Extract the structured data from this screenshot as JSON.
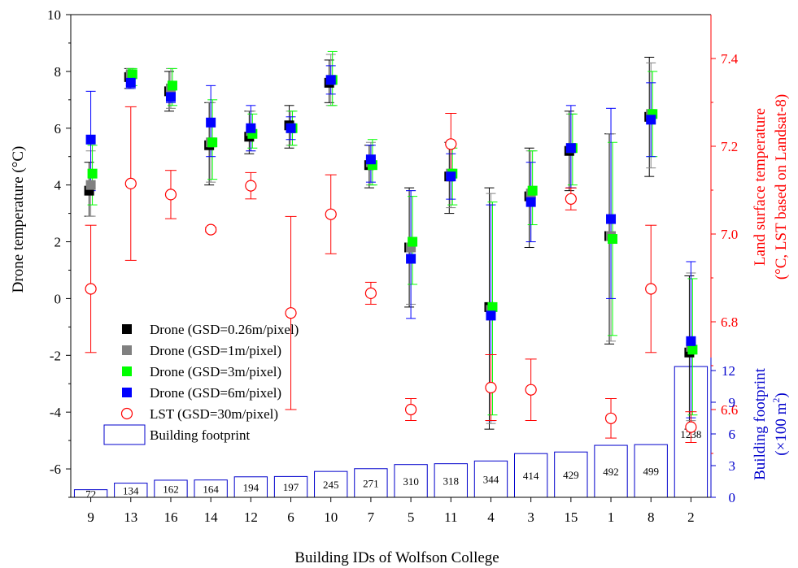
{
  "chart_data": {
    "type": "scatter",
    "xlabel": "Building IDs of Wolfson College",
    "ylabel_left": "Drone temperature (°C)",
    "ylabel_right_line1": "Land surface temperature",
    "ylabel_right_line2": "(°C, LST based on Landsat-8)",
    "ylabel_footprint_line1": "Building footprint",
    "ylabel_footprint_line2_pre": "(×100 m",
    "ylabel_footprint_sup": "2",
    "ylabel_footprint_line2_post": ")",
    "ylim_left": [
      -7,
      10
    ],
    "yticks_left": [
      -6,
      -4,
      -2,
      0,
      2,
      4,
      6,
      8,
      10
    ],
    "ytick_labels_left": [
      "-6",
      "-4",
      "-2",
      "0",
      "2",
      "4",
      "6",
      "8",
      "10"
    ],
    "ylim_right": [
      6.4,
      7.5
    ],
    "yticks_right": [
      6.6,
      6.8,
      7.0,
      7.2,
      7.4
    ],
    "ytick_labels_right": [
      "6.6",
      "6.8",
      "7.0",
      "7.2",
      "7.4"
    ],
    "footprint_ticks": [
      0,
      3,
      6,
      9,
      12
    ],
    "footprint_tick_labels": [
      "0",
      "3",
      "6",
      "9",
      "12"
    ],
    "categories": [
      "9",
      "13",
      "16",
      "14",
      "12",
      "6",
      "10",
      "7",
      "5",
      "11",
      "4",
      "3",
      "15",
      "1",
      "8",
      "2"
    ],
    "series": [
      {
        "name": "Drone (GSD=0.26m/pixel)",
        "color": "#000000",
        "marker": "square",
        "values": [
          3.8,
          7.8,
          7.3,
          5.4,
          5.7,
          6.1,
          7.6,
          4.7,
          1.8,
          4.3,
          -0.3,
          3.6,
          5.2,
          2.2,
          6.4,
          -1.9
        ],
        "err_low": [
          2.9,
          7.4,
          6.6,
          4.0,
          5.1,
          5.3,
          6.9,
          3.9,
          -0.3,
          3.0,
          -4.6,
          1.8,
          3.8,
          -1.6,
          4.3,
          -4.6
        ],
        "err_high": [
          4.8,
          8.1,
          8.0,
          6.9,
          6.6,
          6.8,
          8.4,
          5.4,
          3.9,
          5.5,
          3.9,
          5.3,
          6.6,
          5.8,
          8.5,
          0.8
        ]
      },
      {
        "name": "Drone (GSD=1m/pixel)",
        "color": "#808080",
        "marker": "square",
        "values": [
          4.0,
          7.9,
          7.4,
          5.5,
          5.9,
          6.0,
          7.7,
          4.8,
          1.8,
          4.4,
          -0.4,
          3.7,
          5.3,
          2.2,
          6.5,
          -1.7
        ],
        "err_low": [
          2.9,
          7.5,
          6.7,
          4.1,
          5.2,
          5.4,
          6.8,
          4.0,
          -0.2,
          3.2,
          -4.4,
          2.0,
          3.9,
          -1.5,
          4.6,
          -4.3
        ],
        "err_high": [
          5.2,
          8.1,
          8.1,
          6.9,
          6.6,
          6.6,
          8.6,
          5.5,
          3.8,
          5.4,
          3.7,
          5.2,
          6.5,
          5.8,
          8.3,
          0.9
        ]
      },
      {
        "name": "Drone (GSD=3m/pixel)",
        "color": "#00ff00",
        "marker": "square",
        "values": [
          4.4,
          7.9,
          7.5,
          5.5,
          5.8,
          6.0,
          7.7,
          4.7,
          2.0,
          4.4,
          -0.3,
          3.8,
          5.3,
          2.1,
          6.5,
          -1.8
        ],
        "err_low": [
          3.3,
          7.5,
          6.8,
          4.2,
          5.3,
          5.4,
          6.8,
          4.0,
          0.5,
          3.3,
          -4.1,
          2.6,
          4.0,
          -1.3,
          5.0,
          -4.1
        ],
        "err_high": [
          5.4,
          8.1,
          8.1,
          7.0,
          6.5,
          6.6,
          8.7,
          5.6,
          3.6,
          5.3,
          3.4,
          5.2,
          6.5,
          5.5,
          8.0,
          0.7
        ]
      },
      {
        "name": "Drone (GSD=6m/pixel)",
        "color": "#0000ff",
        "marker": "square",
        "values": [
          5.6,
          7.6,
          7.1,
          6.2,
          6.0,
          6.0,
          7.7,
          4.9,
          1.4,
          4.3,
          -0.6,
          3.4,
          5.3,
          2.8,
          6.3,
          -1.5
        ],
        "err_low": [
          3.8,
          7.4,
          6.9,
          5.0,
          5.2,
          5.6,
          7.2,
          4.1,
          -0.7,
          3.5,
          -4.3,
          2.0,
          3.9,
          0.0,
          5.0,
          -4.2
        ],
        "err_high": [
          7.3,
          8.0,
          7.5,
          7.5,
          6.8,
          6.4,
          8.2,
          5.4,
          3.8,
          5.1,
          3.3,
          4.8,
          6.8,
          6.7,
          7.6,
          1.3
        ]
      },
      {
        "name": "LST (GSD=30m/pixel)",
        "color": "#ff0000",
        "marker": "circle",
        "axis": "right",
        "values": [
          6.875,
          7.115,
          7.09,
          7.01,
          7.11,
          6.82,
          7.045,
          6.865,
          6.6,
          7.205,
          6.65,
          6.645,
          7.08,
          6.58,
          6.875,
          6.56
        ],
        "err_low": [
          6.73,
          6.94,
          7.035,
          7.005,
          7.08,
          6.6,
          6.955,
          6.84,
          6.575,
          7.135,
          6.575,
          6.575,
          7.055,
          6.535,
          6.73,
          6.525
        ],
        "err_high": [
          7.02,
          7.29,
          7.145,
          7.015,
          7.14,
          7.04,
          7.135,
          6.89,
          6.625,
          7.275,
          6.725,
          6.715,
          7.105,
          6.625,
          7.02,
          6.595
        ]
      }
    ],
    "footprint": {
      "name": "Building footprint",
      "unit": "×100 m²",
      "color": "#0000cc",
      "values": [
        72,
        134,
        162,
        164,
        194,
        197,
        245,
        271,
        310,
        318,
        344,
        414,
        429,
        492,
        499,
        1238
      ],
      "value_labels": [
        "72",
        "134",
        "162",
        "164",
        "194",
        "197",
        "245",
        "271",
        "310",
        "318",
        "344",
        "414",
        "429",
        "492",
        "499",
        "1238"
      ]
    },
    "legend_entries": [
      "Drone (GSD=0.26m/pixel)",
      "Drone (GSD=1m/pixel)",
      "Drone (GSD=3m/pixel)",
      "Drone (GSD=6m/pixel)",
      "LST (GSD=30m/pixel)",
      "Building footprint"
    ],
    "legend_position": "lower-left",
    "grid": false,
    "colors": {
      "axis_left": "#000000",
      "axis_right": "#ff0000",
      "axis_footprint": "#0000cc"
    }
  }
}
